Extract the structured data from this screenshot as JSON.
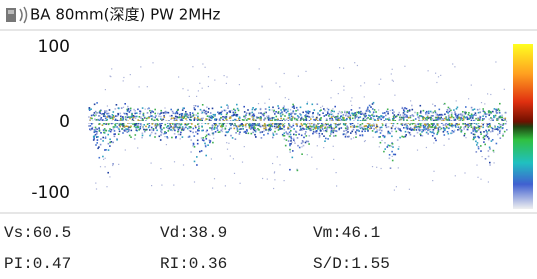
{
  "header": {
    "title": "BA 80mm(深度)  PW  2MHz"
  },
  "scale": {
    "labels": [
      "100",
      "0",
      "-100"
    ]
  },
  "measurements": {
    "rows": [
      [
        "Vs:60.5",
        "Vd:38.9",
        "Vm:46.1"
      ],
      [
        "PI:0.47",
        "RI:0.36",
        "S/D:1.55"
      ]
    ]
  }
}
